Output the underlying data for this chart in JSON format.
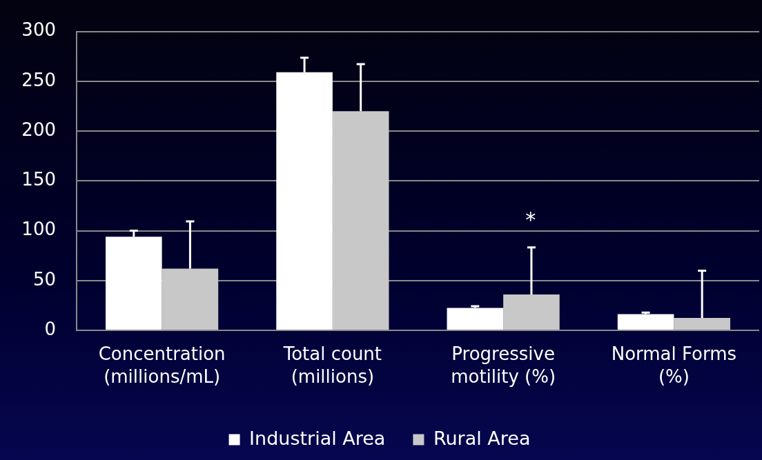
{
  "chart_data": {
    "type": "bar",
    "categories": [
      "Concentration\n(millions/mL)",
      "Total count\n(millions)",
      "Progressive\nmotility (%)",
      "Normal Forms\n(%)"
    ],
    "series": [
      {
        "name": "Industrial Area",
        "color": "#ffffff",
        "values": [
          94,
          259,
          22.5,
          16.3
        ],
        "errors": [
          [
            94,
            100
          ],
          [
            259,
            273.6
          ],
          [
            22.5,
            24.2
          ],
          [
            16.3,
            17.8
          ]
        ]
      },
      {
        "name": "Rural Area",
        "color": "#c8c8c8",
        "values": [
          62,
          220,
          36,
          12.4
        ],
        "errors": [
          [
            62,
            109.3
          ],
          [
            220,
            267.2
          ],
          [
            36,
            83.3
          ],
          [
            12.4,
            59.9
          ]
        ]
      }
    ],
    "ylim": [
      0,
      300
    ],
    "yticks": [
      0,
      50,
      100,
      150,
      200,
      250,
      300
    ],
    "grid": "y",
    "legend": "bottom",
    "annotations": [
      "*"
    ]
  }
}
